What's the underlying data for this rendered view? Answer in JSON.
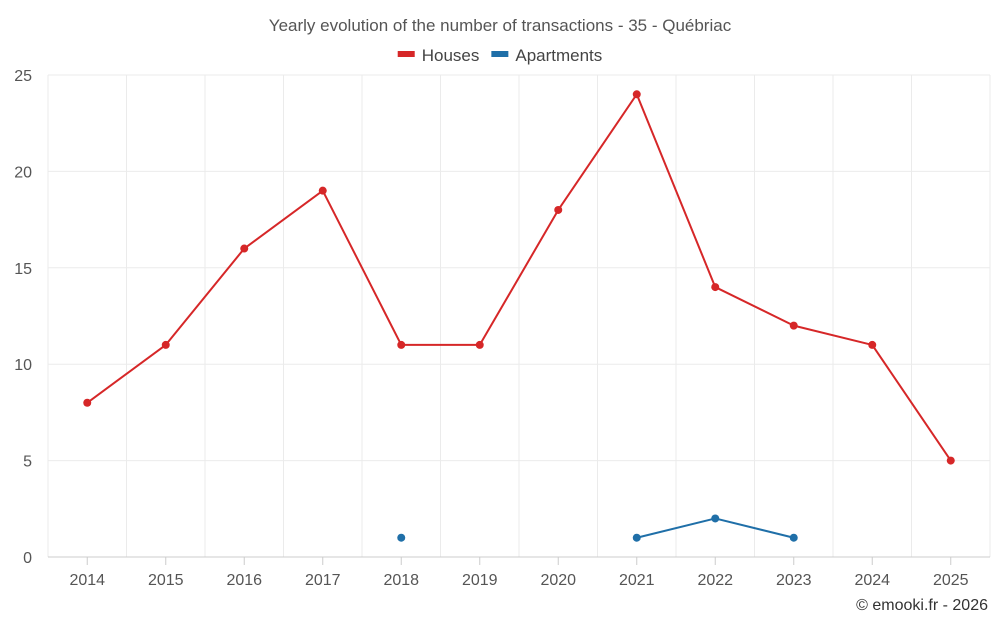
{
  "chart_data": {
    "type": "line",
    "title": "Yearly evolution of the number of transactions - 35 - Québriac",
    "categories": [
      "2014",
      "2015",
      "2016",
      "2017",
      "2018",
      "2019",
      "2020",
      "2021",
      "2022",
      "2023",
      "2024",
      "2025"
    ],
    "series": [
      {
        "name": "Houses",
        "color": "#d62728",
        "values": [
          8,
          11,
          16,
          19,
          11,
          11,
          18,
          24,
          14,
          12,
          11,
          5
        ]
      },
      {
        "name": "Apartments",
        "color": "#1f6fa8",
        "values": [
          null,
          null,
          null,
          null,
          1,
          null,
          null,
          1,
          2,
          1,
          null,
          null
        ]
      }
    ],
    "ylim": [
      0,
      25
    ],
    "yticks": [
      0,
      5,
      10,
      15,
      20,
      25
    ],
    "grid": true,
    "legend": "top-center"
  },
  "credit": "© emooki.fr - 2026"
}
